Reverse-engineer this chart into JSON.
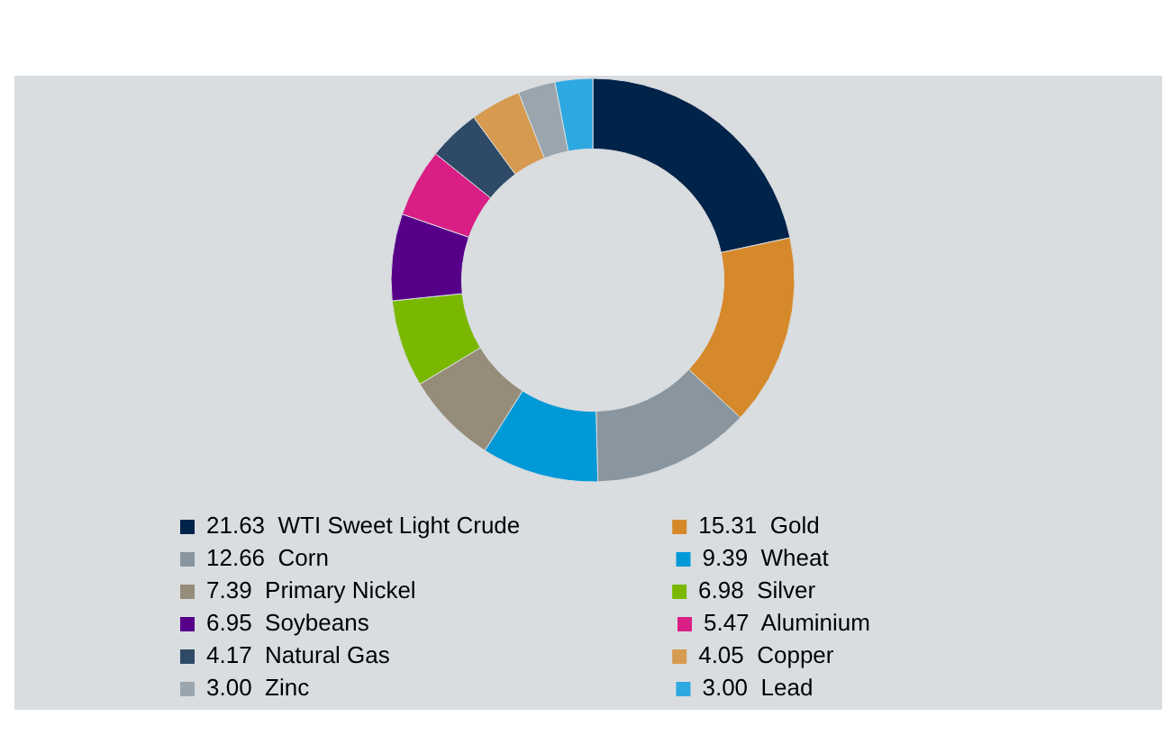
{
  "chart_data": {
    "type": "donut",
    "categories": [
      "WTI Sweet Light Crude",
      "Gold",
      "Corn",
      "Wheat",
      "Primary Nickel",
      "Silver",
      "Soybeans",
      "Aluminium",
      "Natural Gas",
      "Copper",
      "Zinc",
      "Lead"
    ],
    "values": [
      21.63,
      15.31,
      12.66,
      9.39,
      7.39,
      6.98,
      6.95,
      5.47,
      4.17,
      4.05,
      3.0,
      3.0
    ],
    "value_labels": [
      "21.63",
      "15.31",
      "12.66",
      "9.39",
      "7.39",
      "6.98",
      "6.95",
      "5.47",
      "4.17",
      "4.05",
      "3.00",
      "3.00"
    ],
    "colors": [
      "#00234a",
      "#d6892a",
      "#8a969f",
      "#0099d8",
      "#968c7a",
      "#7ab800",
      "#56008a",
      "#d91f85",
      "#2e4a66",
      "#d69a50",
      "#9aa5ad",
      "#2ea8e0"
    ],
    "legend": "bottom"
  }
}
